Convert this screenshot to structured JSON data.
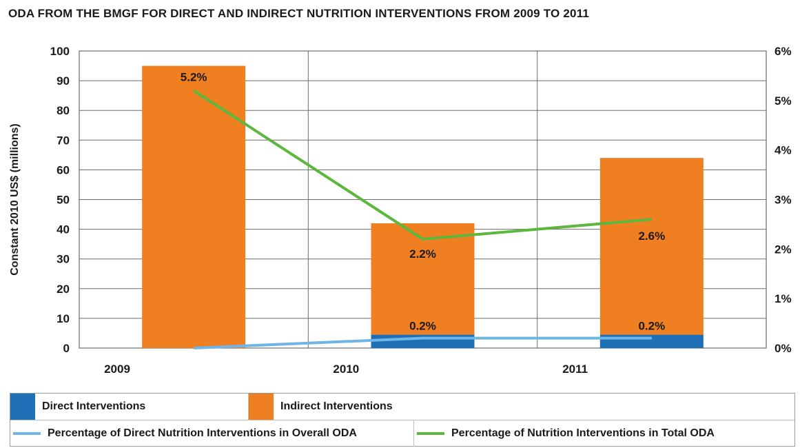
{
  "title": "ODA FROM THE BMGF FOR DIRECT AND INDIRECT NUTRITION INTERVENTIONS FROM 2009 TO 2011",
  "colors": {
    "direct": "#1f6fb6",
    "indirect": "#f07f22",
    "pct_direct_line": "#6fb5e6",
    "pct_total_line": "#5cb83c",
    "grid": "#6b6b6b"
  },
  "chart_data": {
    "type": "bar",
    "stacked": true,
    "categories": [
      "2009",
      "2010",
      "2011"
    ],
    "ylabel": "Constant 2010 US$ (millions)",
    "ylim": [
      0,
      100
    ],
    "y_ticks": [
      "0",
      "10",
      "20",
      "30",
      "40",
      "50",
      "60",
      "70",
      "80",
      "90",
      "100"
    ],
    "y2lim": [
      0,
      6
    ],
    "y2_ticks": [
      "0%",
      "1%",
      "2%",
      "3%",
      "4%",
      "5%",
      "6%"
    ],
    "grid": true,
    "series": [
      {
        "name": "Direct Interventions",
        "kind": "bar",
        "axis": "left",
        "values": [
          0,
          4.5,
          4.5
        ]
      },
      {
        "name": "Indirect Interventions",
        "kind": "bar",
        "axis": "left",
        "values": [
          95,
          37.5,
          59.5
        ]
      },
      {
        "name": "Percentage of Direct Nutrition Interventions in Overall ODA",
        "kind": "line",
        "axis": "right",
        "values": [
          0,
          0.2,
          0.2
        ]
      },
      {
        "name": "Percentage of Nutrition Interventions in Total ODA",
        "kind": "line",
        "axis": "right",
        "values": [
          5.2,
          2.2,
          2.6
        ]
      }
    ],
    "data_labels": {
      "pct_total": [
        "5.2%",
        "2.2%",
        "2.6%"
      ],
      "pct_direct": [
        "",
        "0.2%",
        "0.2%"
      ]
    }
  },
  "legend": {
    "direct": "Direct Interventions",
    "indirect": "Indirect Interventions",
    "pct_direct": "Percentage of Direct Nutrition Interventions in Overall ODA",
    "pct_total": "Percentage of Nutrition Interventions in Total ODA"
  }
}
